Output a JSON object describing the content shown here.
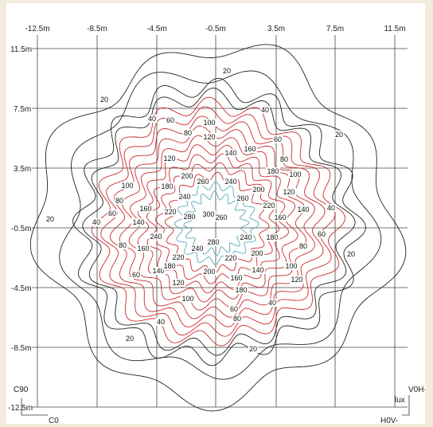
{
  "axes": {
    "x_ticks": [
      "-12.5m",
      "-8.5m",
      "-4.5m",
      "-0.5m",
      "3.5m",
      "7.5m",
      "11.5m"
    ],
    "y_ticks": [
      "11.5m",
      "7.5m",
      "3.5m",
      "-0.5m",
      "-4.5m",
      "-8.5m",
      "-12.5m"
    ],
    "corner_labels": {
      "c90": "C90",
      "c0": "C0",
      "h0v": "H0V-",
      "v0h": "V0H-",
      "unit": "lux"
    }
  },
  "colors": {
    "background": "#f1ecdb",
    "outer_contours": "#222222",
    "inner_contours": "#cc2a2a",
    "center_contours": "#55a9b8",
    "grid": "#444444"
  },
  "contours": {
    "levels": [
      20,
      40,
      60,
      80,
      100,
      120,
      140,
      160,
      180,
      200,
      220,
      240,
      260,
      280,
      300
    ],
    "labels": [
      {
        "text": "20"
      },
      {
        "text": "20"
      },
      {
        "text": "20"
      },
      {
        "text": "20"
      },
      {
        "text": "20"
      },
      {
        "text": "20"
      },
      {
        "text": "20"
      },
      {
        "text": "20"
      },
      {
        "text": "40"
      },
      {
        "text": "40"
      },
      {
        "text": "40"
      },
      {
        "text": "40"
      },
      {
        "text": "40"
      },
      {
        "text": "40"
      },
      {
        "text": "60"
      },
      {
        "text": "60"
      },
      {
        "text": "60"
      },
      {
        "text": "60"
      },
      {
        "text": "60"
      },
      {
        "text": "60"
      },
      {
        "text": "80"
      },
      {
        "text": "80"
      },
      {
        "text": "80"
      },
      {
        "text": "80"
      },
      {
        "text": "80"
      },
      {
        "text": "80"
      },
      {
        "text": "100"
      },
      {
        "text": "100"
      },
      {
        "text": "100"
      },
      {
        "text": "100"
      },
      {
        "text": "100"
      },
      {
        "text": "120"
      },
      {
        "text": "120"
      },
      {
        "text": "120"
      },
      {
        "text": "120"
      },
      {
        "text": "120"
      },
      {
        "text": "140"
      },
      {
        "text": "140"
      },
      {
        "text": "140"
      },
      {
        "text": "140"
      },
      {
        "text": "140"
      },
      {
        "text": "160"
      },
      {
        "text": "160"
      },
      {
        "text": "160"
      },
      {
        "text": "160"
      },
      {
        "text": "160"
      },
      {
        "text": "180"
      },
      {
        "text": "180"
      },
      {
        "text": "180"
      },
      {
        "text": "180"
      },
      {
        "text": "180"
      },
      {
        "text": "200"
      },
      {
        "text": "200"
      },
      {
        "text": "200"
      },
      {
        "text": "200"
      },
      {
        "text": "220"
      },
      {
        "text": "220"
      },
      {
        "text": "220"
      },
      {
        "text": "220"
      },
      {
        "text": "240"
      },
      {
        "text": "240"
      },
      {
        "text": "240"
      },
      {
        "text": "240"
      },
      {
        "text": "240"
      },
      {
        "text": "260"
      },
      {
        "text": "260"
      },
      {
        "text": "260"
      },
      {
        "text": "280"
      },
      {
        "text": "280"
      },
      {
        "text": "300"
      }
    ]
  }
}
